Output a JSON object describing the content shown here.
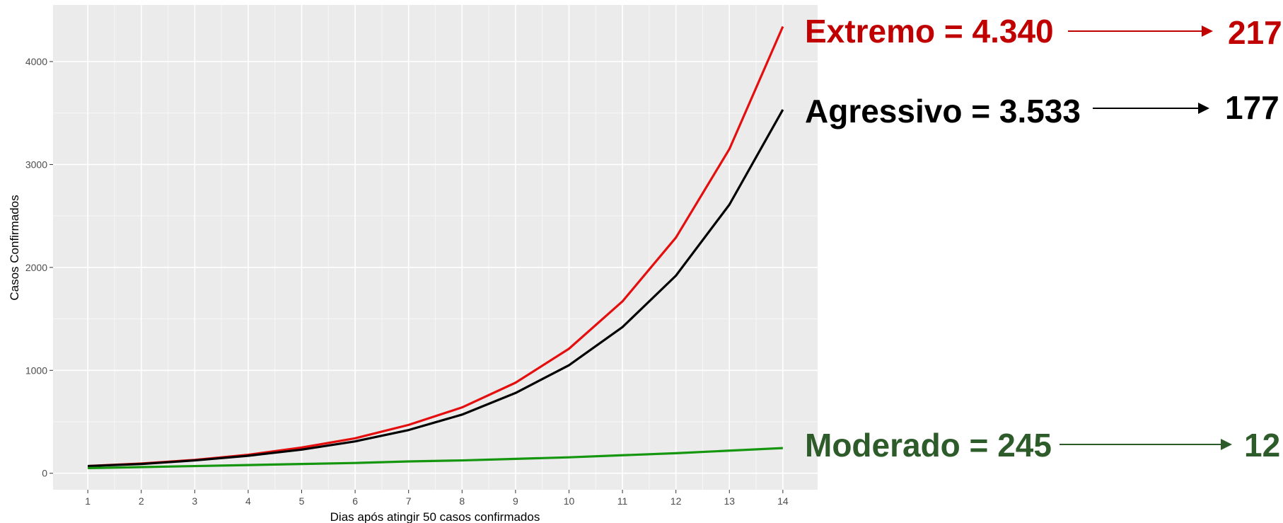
{
  "chart_data": {
    "type": "line",
    "x_label": "Dias após atingir 50 casos confirmados",
    "y_label": "Casos Confirmados",
    "x": [
      1,
      2,
      3,
      4,
      5,
      6,
      7,
      8,
      9,
      10,
      11,
      12,
      13,
      14
    ],
    "xlim": [
      0.35,
      14.65
    ],
    "xticks": [
      1,
      2,
      3,
      4,
      5,
      6,
      7,
      8,
      9,
      10,
      11,
      12,
      13,
      14
    ],
    "ylim": [
      -160,
      4550
    ],
    "yticks": [
      0,
      1000,
      2000,
      3000,
      4000
    ],
    "grid": true,
    "series": [
      {
        "color": "#e50e0e",
        "values": [
          70,
          95,
          130,
          180,
          250,
          340,
          470,
          640,
          880,
          1210,
          1670,
          2290,
          3150,
          4340
        ]
      },
      {
        "color": "#000000",
        "values": [
          70,
          90,
          125,
          170,
          230,
          310,
          420,
          570,
          780,
          1050,
          1420,
          1920,
          2610,
          3533
        ]
      },
      {
        "color": "#14960f",
        "values": [
          50,
          60,
          70,
          80,
          90,
          100,
          115,
          125,
          140,
          155,
          175,
          195,
          220,
          245
        ]
      }
    ],
    "annotations": [
      {
        "text": "Extremo = 4.340",
        "result": "217",
        "color": "#c00000"
      },
      {
        "text": "Agressivo = 3.533",
        "result": "177",
        "color": "#000000"
      },
      {
        "text": "Moderado = 245",
        "result": "12",
        "color": "#2e5b2a"
      }
    ]
  }
}
